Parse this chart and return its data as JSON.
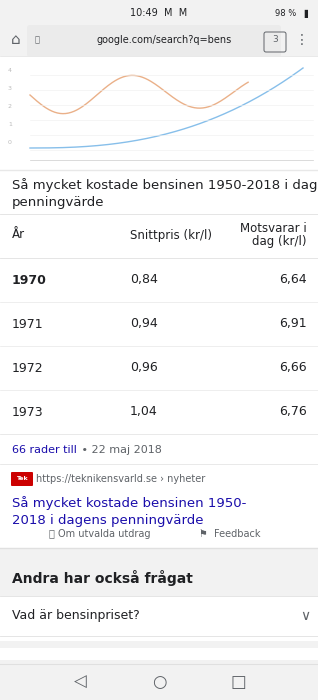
{
  "bg_color": "#f2f2f2",
  "white": "#ffffff",
  "text_color": "#202124",
  "secondary_text_color": "#5f6368",
  "link_color": "#1a0dab",
  "divider_color": "#dadce0",
  "source_label_bg": "#cc0000",
  "chart_line_color1": "#e8a87c",
  "chart_line_color2": "#7ab8e8",
  "status_time": "10:49  M  M",
  "status_right": "98 %",
  "url_text": "google.com/search?q=bens",
  "url_tab": "3",
  "table_title": "Så mycket kostade bensinen 1950-2018 i dagens\npenningvärde",
  "col_headers": [
    "År",
    "Snittpris (kr/l)",
    "Motsvarar i\ndag (kr/l)"
  ],
  "table_rows": [
    [
      "1970",
      "0,84",
      "6,64"
    ],
    [
      "1971",
      "0,94",
      "6,91"
    ],
    [
      "1972",
      "0,96",
      "6,66"
    ],
    [
      "1973",
      "1,04",
      "6,76"
    ]
  ],
  "footer_link": "66 rader till",
  "footer_date": " • 22 maj 2018",
  "source_url": "https://teknikensvarld.se › nyheter",
  "source_title": "Så mycket kostade bensinen 1950-\n2018 i dagens penningvärde",
  "info_text1": "Om utvalda utdrag",
  "info_text2": "Feedback",
  "section_title": "Andra har också frågat",
  "faq_item": "Vad är bensinpriset?"
}
